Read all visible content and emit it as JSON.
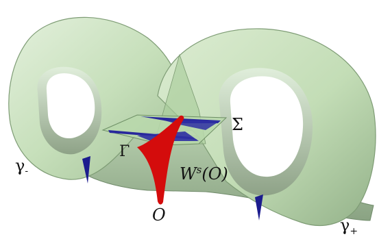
{
  "labels": {
    "gamma_minus": {
      "base": "γ",
      "sub": "-"
    },
    "gamma_plus": {
      "base": "γ",
      "sub": "+"
    },
    "sigma": "Σ",
    "capital_gamma": "Γ",
    "stable_manifold": {
      "base": "W",
      "sup": "s",
      "arg": "(O)"
    },
    "origin": "O"
  },
  "colors": {
    "surface": "#c9e2bd",
    "surface_dark": "#9fbe93",
    "surface_shadow": "#7f9a7a",
    "section_plane": "#b8d8aa",
    "blue_sheet": "#2a2a9e",
    "red_manifold": "#d40c0c",
    "hole": "#ffffff"
  }
}
